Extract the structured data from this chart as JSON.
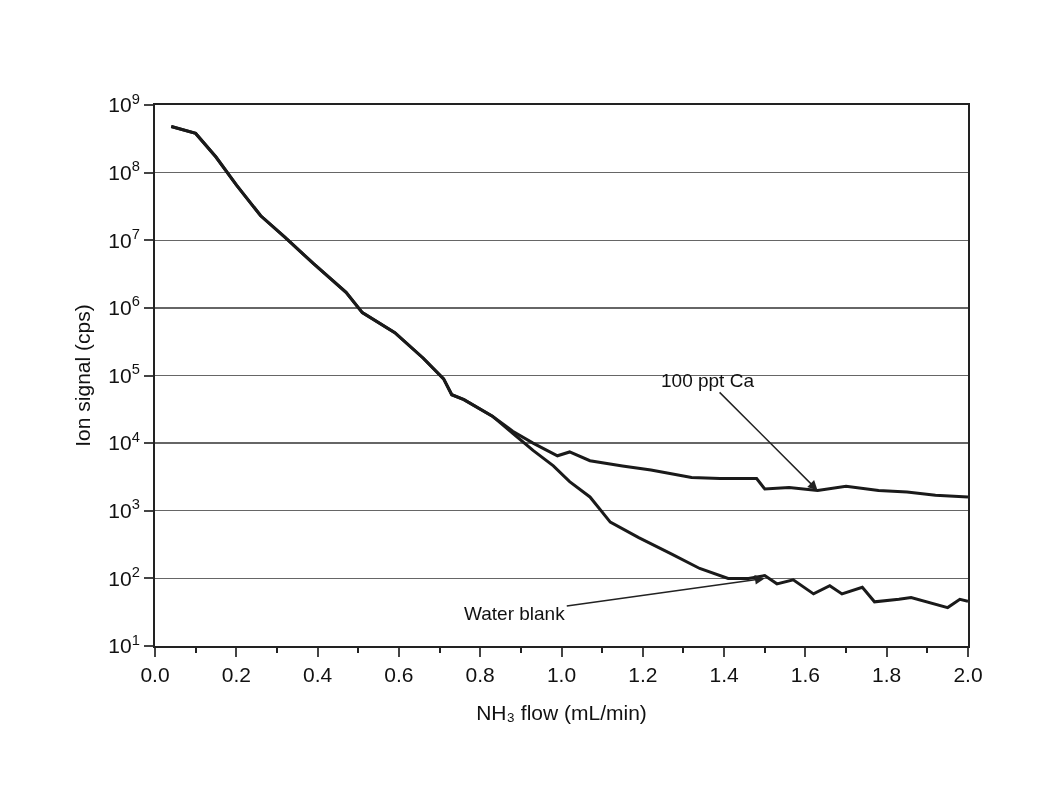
{
  "chart_data": {
    "type": "line",
    "xlabel": "NH₃ flow (mL/min)",
    "ylabel": "Ion signal (cps)",
    "log": "y",
    "grid": "y",
    "marker": "none",
    "line_style": "solid",
    "xlim": [
      0,
      2
    ],
    "ylim": [
      10,
      1000000000
    ],
    "xticks": [
      {
        "value": 0,
        "label": "0.0"
      },
      0.2,
      0.4,
      0.6,
      0.8,
      {
        "value": 1,
        "label": "1.0"
      },
      1.2,
      1.4,
      1.6,
      1.8,
      {
        "value": 2,
        "label": "2.0"
      }
    ],
    "yticks": [
      {
        "value": 10,
        "label": "10$^{1}$"
      },
      {
        "value": 100,
        "label": "10$^{2}$"
      },
      {
        "value": 1000,
        "label": "10$^{3}$"
      },
      {
        "value": 10000,
        "label": "10$^{4}$"
      },
      {
        "value": 100000,
        "label": "10$^{5}$"
      },
      {
        "value": 1000000,
        "label": "10$^{6}$"
      },
      {
        "value": 10000000,
        "label": "10$^{7}$"
      },
      {
        "value": 100000000,
        "label": "10$^{8}$"
      },
      {
        "value": 1000000000,
        "label": "10$^{9}$"
      }
    ],
    "series": [
      {
        "color": "#1a1a1a",
        "x": [
          0.04,
          0.1,
          0.15,
          0.2,
          0.26,
          0.32,
          0.39,
          0.47,
          0.51,
          0.59,
          0.66,
          0.71,
          0.73,
          0.76,
          0.83,
          0.88,
          0.93,
          0.99,
          1.02,
          1.07,
          1.15,
          1.22,
          1.32,
          1.39,
          1.48,
          1.5,
          1.56,
          1.63,
          1.7,
          1.78,
          1.85,
          1.92,
          2.0
        ],
        "values": [
          480000000.0,
          380000000.0,
          170000000.0,
          66000000.0,
          23000000.0,
          11000000.0,
          4500000.0,
          1700000.0,
          850000.0,
          430000.0,
          180000.0,
          89000.0,
          52000.0,
          44000.0,
          25000.0,
          15000.0,
          10000.0,
          6500,
          7400,
          5500,
          4600,
          4000,
          3100,
          3000,
          3000,
          2100,
          2200,
          2000,
          2300,
          2000,
          1900,
          1700,
          1600
        ]
      },
      {
        "color": "#1a1a1a",
        "x": [
          0.04,
          0.1,
          0.15,
          0.2,
          0.26,
          0.32,
          0.39,
          0.47,
          0.51,
          0.59,
          0.66,
          0.71,
          0.73,
          0.76,
          0.83,
          0.88,
          0.93,
          0.98,
          1.02,
          1.07,
          1.12,
          1.19,
          1.27,
          1.34,
          1.41,
          1.46,
          1.5,
          1.53,
          1.57,
          1.62,
          1.66,
          1.69,
          1.74,
          1.77,
          1.83,
          1.86,
          1.95,
          1.98,
          2.0
        ],
        "values": [
          480000000.0,
          380000000.0,
          170000000.0,
          66000000.0,
          23000000.0,
          11000000.0,
          4500000.0,
          1700000.0,
          850000.0,
          430000.0,
          180000.0,
          89000.0,
          52000.0,
          44000.0,
          25000.0,
          14000.0,
          7800,
          4600,
          2700,
          1600,
          680,
          400,
          230,
          140,
          100,
          100,
          110,
          83,
          95,
          59,
          78,
          59,
          74,
          45,
          49,
          52,
          37,
          49,
          46
        ]
      }
    ],
    "annotations": [
      {
        "text": "100 ppt Ca",
        "x": 1.63,
        "y": 2000
      },
      {
        "text": "Water blank",
        "x": 1.5,
        "y": 100
      }
    ]
  }
}
